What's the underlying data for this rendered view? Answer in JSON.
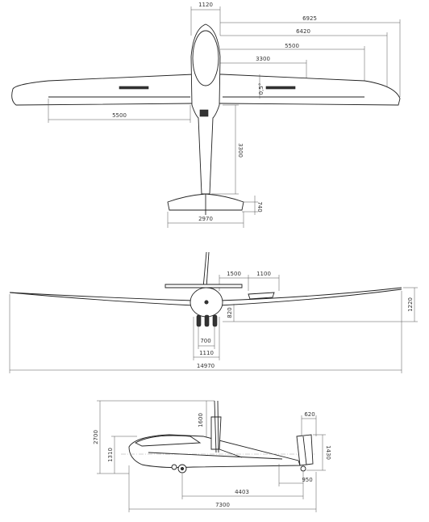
{
  "top_view": {
    "dims": {
      "fuselage_width": "1120",
      "tip_span": "6925",
      "aileron_outer": "6420",
      "flap_outer": "5500",
      "airbrake": "3300",
      "dihedral": "0,5°",
      "flap_span": "5500",
      "tail_arm": "3300",
      "tail_chord": "740",
      "tail_span": "2970"
    }
  },
  "front_view": {
    "dims": {
      "dim_1500": "1500",
      "dim_1100": "1100",
      "wing_height": "1220",
      "prop_height": "820",
      "gear_track": "700",
      "cabin_width": "1110",
      "span": "14970"
    }
  },
  "side_view": {
    "dims": {
      "height_total": "2700",
      "nose_height": "1310",
      "pylon_height": "1600",
      "fin_chord": "620",
      "fin_height": "1430",
      "wheelbase": "4403",
      "tail_wheel": "950",
      "length": "7300"
    }
  }
}
